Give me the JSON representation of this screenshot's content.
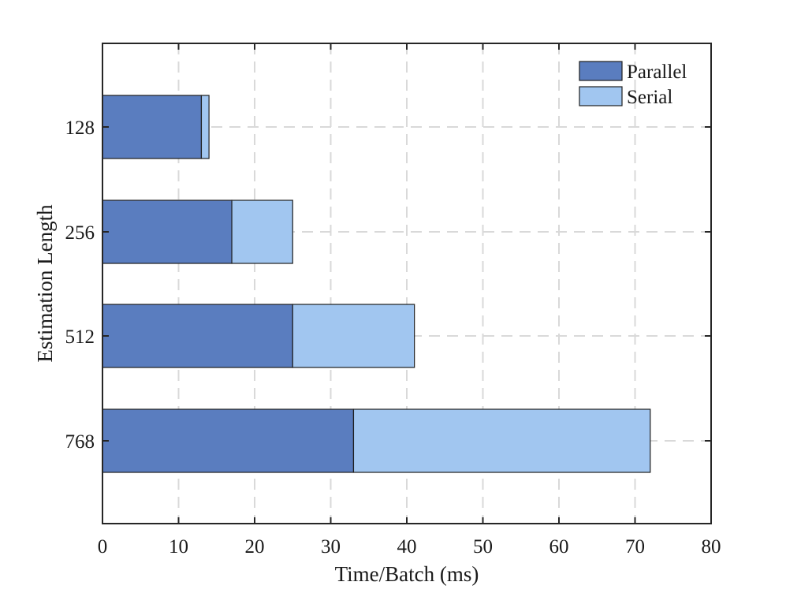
{
  "chart_data": {
    "type": "bar",
    "orientation": "horizontal",
    "stacked": true,
    "title": "",
    "xlabel": "Time/Batch (ms)",
    "ylabel": "Estimation Length",
    "categories": [
      "128",
      "256",
      "512",
      "768"
    ],
    "series": [
      {
        "name": "Parallel",
        "values": [
          13,
          17,
          25,
          33
        ],
        "color": "#5a7dbf"
      },
      {
        "name": "Serial",
        "values": [
          1,
          8,
          16,
          39
        ],
        "color": "#a1c6f0"
      }
    ],
    "xlim": [
      0,
      80
    ],
    "xticks": [
      0,
      10,
      20,
      30,
      40,
      50,
      60,
      70,
      80
    ],
    "grid": true,
    "grid_style": "dashed",
    "legend_position": "top-right"
  }
}
